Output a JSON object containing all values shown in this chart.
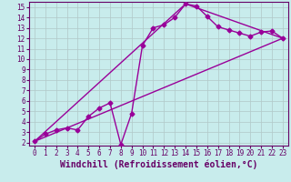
{
  "xlabel": "Windchill (Refroidissement éolien,°C)",
  "background_color": "#c8ecec",
  "line_color": "#990099",
  "grid_color": "#b0c8c8",
  "xlim": [
    -0.5,
    23.5
  ],
  "ylim": [
    1.7,
    15.5
  ],
  "xticks": [
    0,
    1,
    2,
    3,
    4,
    5,
    6,
    7,
    8,
    9,
    10,
    11,
    12,
    13,
    14,
    15,
    16,
    17,
    18,
    19,
    20,
    21,
    22,
    23
  ],
  "yticks": [
    2,
    3,
    4,
    5,
    6,
    7,
    8,
    9,
    10,
    11,
    12,
    13,
    14,
    15
  ],
  "line1_x": [
    0,
    1,
    2,
    3,
    4,
    5,
    6,
    7,
    8,
    9,
    10,
    11,
    12,
    13,
    14,
    15,
    16,
    17,
    18,
    19,
    20,
    21,
    22,
    23
  ],
  "line1_y": [
    2.1,
    2.8,
    3.2,
    3.4,
    3.2,
    4.5,
    5.3,
    5.8,
    1.8,
    4.8,
    11.3,
    13.0,
    13.3,
    14.0,
    15.3,
    15.1,
    14.1,
    13.1,
    12.8,
    12.5,
    12.2,
    12.6,
    12.7,
    12.0
  ],
  "line2_x": [
    0,
    23
  ],
  "line2_y": [
    2.1,
    12.0
  ],
  "line3_x": [
    0,
    14,
    23
  ],
  "line3_y": [
    2.1,
    15.3,
    12.0
  ],
  "marker": "D",
  "markersize": 2.5,
  "linewidth": 1.0,
  "font_color": "#660066",
  "tick_fontsize": 5.5,
  "xlabel_fontsize": 7.0
}
